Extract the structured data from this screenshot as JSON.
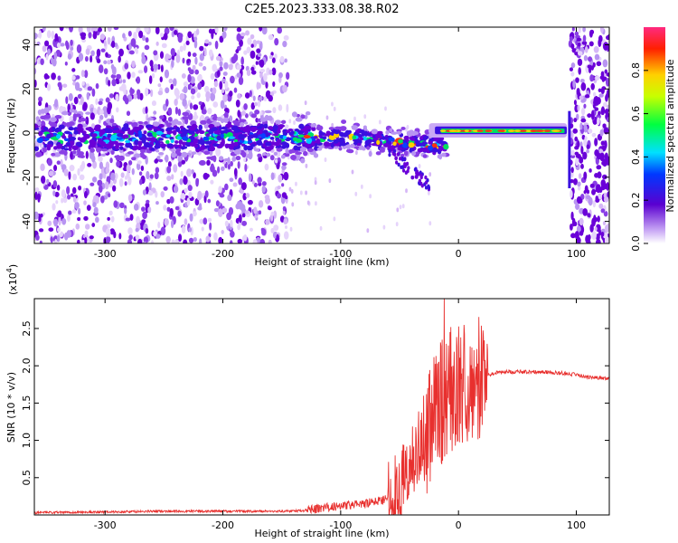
{
  "title": "C2E5.2023.333.08.38.R02",
  "chart_data": [
    {
      "type": "heatmap",
      "xlabel": "Height of straight line (km)",
      "ylabel": "Frequency (Hz)",
      "xlim": [
        -360,
        128
      ],
      "ylim": [
        -50,
        48
      ],
      "xticks": [
        -300,
        -200,
        -100,
        0,
        100
      ],
      "yticks": [
        -40,
        -20,
        0,
        20,
        40
      ],
      "colorbar": {
        "label": "Normalized spectral amplitude",
        "range": [
          0,
          1
        ],
        "ticks": [
          "0.0",
          "0.2",
          "0.4",
          "0.6",
          "0.8"
        ]
      },
      "features": [
        {
          "desc": "broadband noise region",
          "x_range": [
            -360,
            -145
          ],
          "freq_range": [
            -50,
            48
          ]
        },
        {
          "desc": "central band",
          "x_range": [
            -360,
            -10
          ],
          "center_freq": -2
        },
        {
          "desc": "narrow carrier line",
          "x_range": [
            -10,
            92
          ],
          "center_freq": 0.5
        },
        {
          "desc": "broadband noise region",
          "x_range": [
            95,
            128
          ],
          "freq_range": [
            -50,
            48
          ]
        }
      ]
    },
    {
      "type": "line",
      "xlabel": "Height of straight line (km)",
      "ylabel": "SNR (10 * v/v)",
      "multiplier_label": "(x10",
      "multiplier_exp": "4",
      "xlim": [
        -360,
        128
      ],
      "ylim": [
        0,
        2.9
      ],
      "xticks": [
        -300,
        -200,
        -100,
        0,
        100
      ],
      "yticks": [
        "0.5",
        "1.0",
        "1.5",
        "2.0",
        "2.5"
      ],
      "series_color": "#e8302e",
      "series": [
        {
          "x": [
            -360,
            -300,
            -250,
            -200,
            -150,
            -120,
            -100,
            -80,
            -60,
            -50,
            -40,
            -30,
            -25,
            -20,
            -15,
            -10,
            -5,
            0,
            10,
            20,
            30,
            40,
            50,
            70,
            90,
            100,
            110,
            128
          ],
          "y": [
            0.03,
            0.04,
            0.05,
            0.05,
            0.05,
            0.06,
            0.1,
            0.12,
            0.2,
            0.35,
            0.7,
            1.0,
            1.2,
            1.4,
            1.5,
            1.6,
            1.7,
            1.75,
            1.8,
            1.85,
            1.9,
            1.92,
            1.92,
            1.92,
            1.9,
            1.88,
            1.85,
            1.83
          ]
        }
      ],
      "annotations": [
        {
          "x": -12,
          "y": 2.9,
          "desc": "spike peak"
        }
      ]
    }
  ]
}
